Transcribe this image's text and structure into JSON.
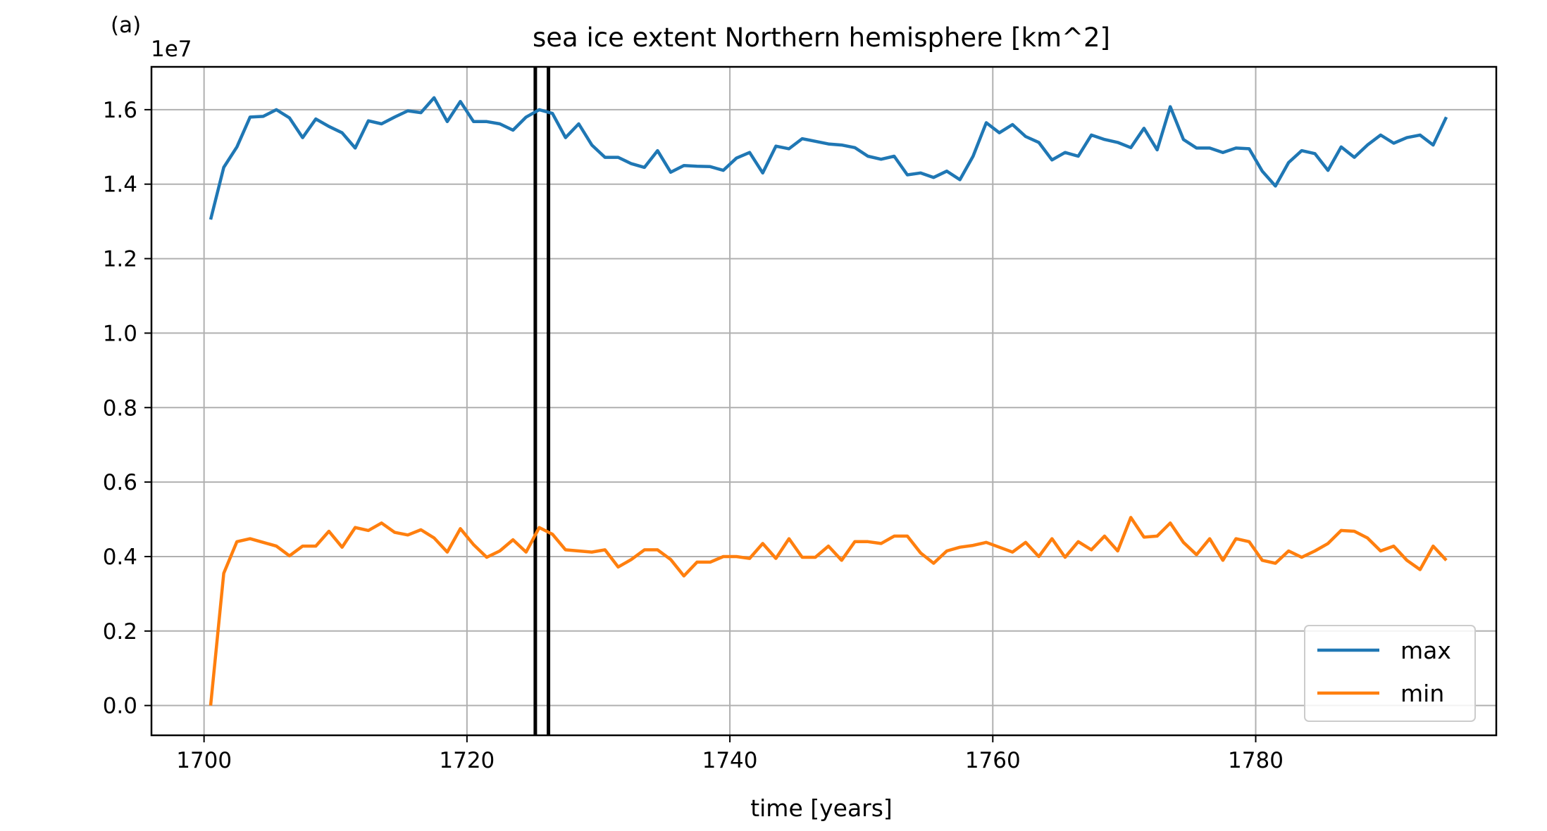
{
  "panel_label": "(a)",
  "chart_data": {
    "type": "line",
    "title": "sea ice extent Northern hemisphere [km^2]",
    "xlabel": "time [years]",
    "ylabel": "",
    "offset_label": "1e7",
    "y_scale_factor": 10000000,
    "xlim": [
      1696.0,
      1798.3
    ],
    "ylim": [
      -0.08,
      1.715
    ],
    "x_ticks": [
      1700,
      1720,
      1740,
      1760,
      1780
    ],
    "x_tick_labels": [
      "1700",
      "1720",
      "1740",
      "1760",
      "1780"
    ],
    "y_ticks": [
      0.0,
      0.2,
      0.4,
      0.6,
      0.8,
      1.0,
      1.2,
      1.4,
      1.6
    ],
    "y_tick_labels": [
      "0.0",
      "0.2",
      "0.4",
      "0.6",
      "0.8",
      "1.0",
      "1.2",
      "1.4",
      "1.6"
    ],
    "grid": true,
    "legend_position": "lower-right",
    "vlines": [
      1725.2,
      1726.2
    ],
    "vline_color": "#000000",
    "x": [
      1700.5,
      1701.5,
      1702.5,
      1703.5,
      1704.5,
      1705.5,
      1706.5,
      1707.5,
      1708.5,
      1709.5,
      1710.5,
      1711.5,
      1712.5,
      1713.5,
      1714.5,
      1715.5,
      1716.5,
      1717.5,
      1718.5,
      1719.5,
      1720.5,
      1721.5,
      1722.5,
      1723.5,
      1724.5,
      1725.5,
      1726.5,
      1727.5,
      1728.5,
      1729.5,
      1730.5,
      1731.5,
      1732.5,
      1733.5,
      1734.5,
      1735.5,
      1736.5,
      1737.5,
      1738.5,
      1739.5,
      1740.5,
      1741.5,
      1742.5,
      1743.5,
      1744.5,
      1745.5,
      1746.5,
      1747.5,
      1748.5,
      1749.5,
      1750.5,
      1751.5,
      1752.5,
      1753.5,
      1754.5,
      1755.5,
      1756.5,
      1757.5,
      1758.5,
      1759.5,
      1760.5,
      1761.5,
      1762.5,
      1763.5,
      1764.5,
      1765.5,
      1766.5,
      1767.5,
      1768.5,
      1769.5,
      1770.5,
      1771.5,
      1772.5,
      1773.5,
      1774.5,
      1775.5,
      1776.5,
      1777.5,
      1778.5,
      1779.5,
      1780.5,
      1781.5,
      1782.5,
      1783.5,
      1784.5,
      1785.5,
      1786.5,
      1787.5,
      1788.5,
      1789.5,
      1790.5,
      1791.5,
      1792.5,
      1793.5,
      1794.5
    ],
    "series": [
      {
        "name": "max",
        "color": "#1f77b4",
        "values": [
          1.305,
          1.445,
          1.5,
          1.58,
          1.582,
          1.6,
          1.578,
          1.525,
          1.575,
          1.555,
          1.538,
          1.497,
          1.57,
          1.562,
          1.58,
          1.597,
          1.592,
          1.632,
          1.568,
          1.622,
          1.568,
          1.568,
          1.562,
          1.545,
          1.58,
          1.6,
          1.59,
          1.525,
          1.562,
          1.505,
          1.472,
          1.472,
          1.455,
          1.445,
          1.49,
          1.432,
          1.45,
          1.448,
          1.447,
          1.437,
          1.47,
          1.485,
          1.43,
          1.502,
          1.495,
          1.522,
          1.515,
          1.508,
          1.505,
          1.498,
          1.475,
          1.467,
          1.475,
          1.425,
          1.43,
          1.418,
          1.435,
          1.412,
          1.475,
          1.565,
          1.538,
          1.56,
          1.528,
          1.512,
          1.465,
          1.485,
          1.475,
          1.532,
          1.52,
          1.512,
          1.498,
          1.55,
          1.492,
          1.608,
          1.52,
          1.497,
          1.497,
          1.485,
          1.497,
          1.495,
          1.435,
          1.395,
          1.458,
          1.49,
          1.482,
          1.437,
          1.5,
          1.472,
          1.505,
          1.532,
          1.51,
          1.525,
          1.532,
          1.505,
          1.58
        ]
      },
      {
        "name": "min",
        "color": "#ff7f0e",
        "values": [
          0.0,
          0.355,
          0.44,
          0.448,
          0.438,
          0.428,
          0.402,
          0.428,
          0.428,
          0.468,
          0.425,
          0.478,
          0.47,
          0.49,
          0.465,
          0.458,
          0.472,
          0.45,
          0.412,
          0.475,
          0.432,
          0.398,
          0.415,
          0.445,
          0.412,
          0.478,
          0.46,
          0.418,
          0.415,
          0.412,
          0.418,
          0.372,
          0.392,
          0.418,
          0.418,
          0.392,
          0.348,
          0.385,
          0.385,
          0.4,
          0.4,
          0.395,
          0.435,
          0.395,
          0.448,
          0.398,
          0.398,
          0.428,
          0.39,
          0.44,
          0.44,
          0.435,
          0.455,
          0.455,
          0.41,
          0.382,
          0.415,
          0.425,
          0.43,
          0.438,
          0.425,
          0.412,
          0.438,
          0.4,
          0.448,
          0.398,
          0.44,
          0.418,
          0.455,
          0.415,
          0.505,
          0.452,
          0.455,
          0.49,
          0.438,
          0.405,
          0.448,
          0.39,
          0.448,
          0.44,
          0.39,
          0.382,
          0.415,
          0.398,
          0.415,
          0.435,
          0.47,
          0.468,
          0.45,
          0.415,
          0.428,
          0.39,
          0.365,
          0.428,
          0.39
        ]
      }
    ]
  }
}
